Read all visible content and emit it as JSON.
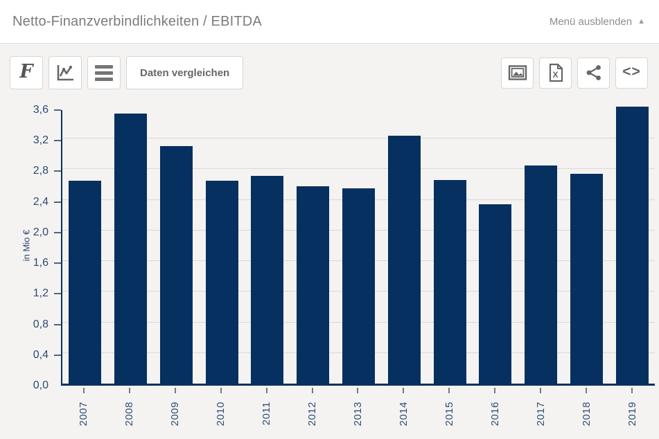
{
  "header": {
    "title": "Netto-Finanzverbindlichkeiten / EBITDA",
    "menu_toggle_label": "Menü ausblenden",
    "menu_toggle_icon": "triangle-up-icon"
  },
  "toolbar": {
    "compare_label": "Daten vergleichen",
    "left_icons": [
      "font-style-icon",
      "line-chart-icon",
      "menu-icon"
    ],
    "right_icons": [
      "export-image-icon",
      "export-excel-icon",
      "share-icon",
      "embed-code-icon"
    ]
  },
  "chart_data": {
    "type": "bar",
    "title": "Netto-Finanzverbindlichkeiten / EBITDA",
    "xlabel": "",
    "ylabel": "in Mio €",
    "categories": [
      "2007",
      "2008",
      "2009",
      "2010",
      "2011",
      "2012",
      "2013",
      "2014",
      "2015",
      "2016",
      "2017",
      "2018",
      "2019"
    ],
    "values": [
      2.65,
      3.53,
      3.1,
      2.65,
      2.71,
      2.58,
      2.55,
      3.24,
      2.66,
      2.34,
      2.85,
      2.74,
      3.62
    ],
    "ylim": [
      0,
      3.6
    ],
    "ytick_step": 0.4,
    "ytick_labels": [
      "0,0",
      "0,4",
      "0,8",
      "1,2",
      "1,6",
      "2,0",
      "2,4",
      "2,8",
      "3,2",
      "3,6"
    ],
    "grid": true,
    "legend": "none",
    "bar_color": "#05305f"
  },
  "colors": {
    "bar": "#05305f",
    "axis": "#05305f",
    "background": "#f4f3f1",
    "header_background": "#ffffff",
    "gridline": "#d8d8d8",
    "icon_gray": "#666666",
    "title_gray": "#7b7b7b"
  }
}
